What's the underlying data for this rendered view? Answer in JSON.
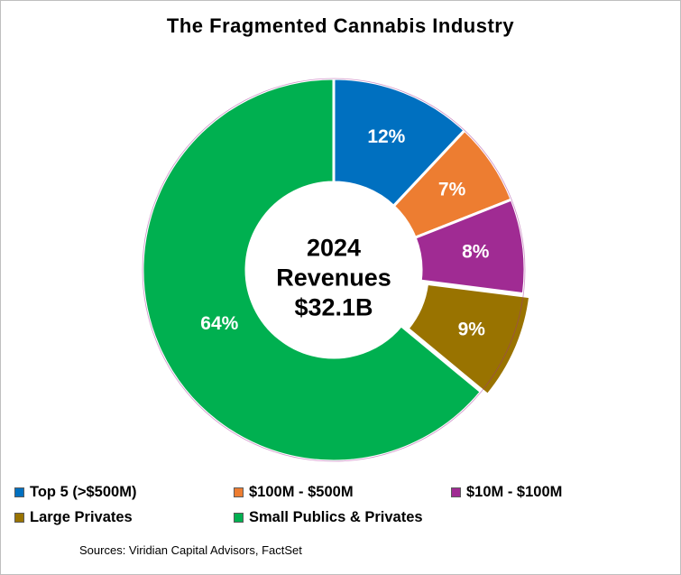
{
  "chart_data": {
    "type": "pie",
    "variant": "donut",
    "title": "The Fragmented Cannabis Industry",
    "center_label": [
      "2024",
      "Revenues",
      "$32.1B"
    ],
    "categories": [
      "Top 5 (>$500M)",
      "$100M - $500M",
      "$10M - $100M",
      "Large Privates",
      "Small Publics  & Privates"
    ],
    "values": [
      12,
      7,
      8,
      9,
      64
    ],
    "value_labels": [
      "12%",
      "7%",
      "8%",
      "9%",
      "64%"
    ],
    "colors": [
      "#0070c0",
      "#ed7d31",
      "#a02b93",
      "#997300",
      "#00b050"
    ],
    "exploded_slice": "Large Privates",
    "legend_position": "bottom"
  },
  "source_note": "Sources: Viridian Capital Advisors, FactSet"
}
